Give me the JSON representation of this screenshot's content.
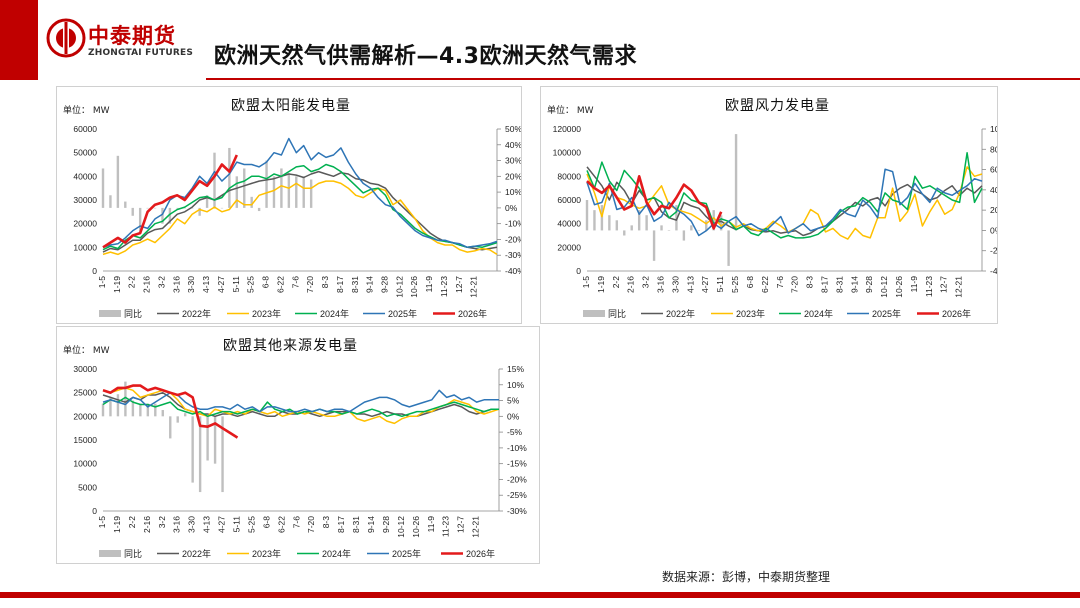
{
  "header": {
    "logo_cn": "中泰期货",
    "logo_en": "ZHONGTAI FUTURES",
    "title": "欧洲天然气供需解析—4.3欧洲天然气需求"
  },
  "footer": {
    "source": "数据来源：彭博，中泰期货整理"
  },
  "colors": {
    "accent": "#c00000",
    "yoy": "#bfbfbf",
    "y2022": "#595959",
    "y2023": "#ffc000",
    "y2024": "#00b050",
    "y2025": "#2e75b6",
    "y2026": "#e31a1c"
  },
  "chart_data": [
    {
      "type": "line",
      "title": "欧盟太阳能发电量",
      "unit": "单位： MW",
      "x_ticks": [
        "1-5",
        "1-19",
        "2-2",
        "2-16",
        "3-2",
        "3-16",
        "3-30",
        "4-13",
        "4-27",
        "5-11",
        "5-25",
        "6-8",
        "6-22",
        "7-6",
        "7-20",
        "8-3",
        "8-17",
        "8-31",
        "9-14",
        "9-28",
        "10-12",
        "10-26",
        "11-9",
        "11-23",
        "12-7",
        "12-21"
      ],
      "ylim": [
        0,
        60000
      ],
      "y_ticks": [
        "0",
        "10000",
        "20000",
        "30000",
        "40000",
        "50000",
        "60000"
      ],
      "y2lim": [
        -40,
        50
      ],
      "y2_ticks": [
        "-40%",
        "-30%",
        "-20%",
        "-10%",
        "0%",
        "10%",
        "20%",
        "30%",
        "40%",
        "50%"
      ],
      "legend": [
        "同比",
        "2022年",
        "2023年",
        "2024年",
        "2025年",
        "2026年"
      ],
      "yoy": [
        25,
        8,
        33,
        4,
        -5,
        -15,
        0,
        0,
        -10,
        -10,
        0,
        0,
        0,
        -5,
        8,
        35,
        0,
        38,
        20,
        25,
        7,
        -2,
        30,
        20,
        25,
        22,
        20,
        20,
        18
      ],
      "series": [
        {
          "name": "2022年",
          "values": [
            8000,
            9500,
            9000,
            11000,
            13000,
            13000,
            16000,
            17500,
            18000,
            21000,
            24000,
            25000,
            27000,
            30000,
            31000,
            30000,
            32000,
            34000,
            35000,
            36000,
            37000,
            38000,
            38500,
            39000,
            40000,
            41000,
            40500,
            39500,
            41000,
            42000,
            41000,
            40000,
            41500,
            41000,
            39000,
            38500,
            37000,
            36500,
            35000,
            31000,
            28000,
            25000,
            22000,
            19000,
            16000,
            14000,
            12500,
            12000,
            11000,
            10000,
            9500,
            9000,
            9500,
            10000
          ]
        },
        {
          "name": "2023年",
          "values": [
            7000,
            8000,
            7000,
            8500,
            11000,
            12000,
            13500,
            12000,
            15000,
            18000,
            22000,
            20000,
            24000,
            26000,
            25000,
            27000,
            25000,
            26000,
            30000,
            28000,
            28000,
            32000,
            33000,
            34000,
            36000,
            35000,
            37000,
            35000,
            35000,
            37000,
            38000,
            38000,
            37000,
            35000,
            32000,
            31000,
            33000,
            35000,
            34000,
            28000,
            30000,
            26000,
            22000,
            17000,
            14000,
            12000,
            11000,
            11000,
            9000,
            8000,
            8500,
            9500,
            9000,
            7000
          ]
        },
        {
          "name": "2024年",
          "values": [
            9000,
            10500,
            9500,
            13000,
            15000,
            14000,
            17000,
            20000,
            21000,
            24000,
            26000,
            27000,
            29000,
            31000,
            31500,
            30000,
            31000,
            35000,
            37000,
            38000,
            40000,
            40000,
            39000,
            41000,
            40000,
            42000,
            44000,
            44500,
            42000,
            43000,
            45000,
            44000,
            42000,
            39000,
            36000,
            33000,
            34500,
            35000,
            32000,
            26000,
            24000,
            21000,
            18000,
            16000,
            14500,
            13000,
            12500,
            12000,
            11000,
            10000,
            10500,
            10000,
            11000,
            12000
          ]
        },
        {
          "name": "2025年",
          "values": [
            10000,
            11000,
            11500,
            14000,
            17000,
            19000,
            18000,
            22000,
            24000,
            30000,
            32000,
            31000,
            35000,
            40000,
            37000,
            42000,
            38000,
            41000,
            46000,
            45000,
            45000,
            44000,
            46000,
            50000,
            49000,
            56000,
            50000,
            53000,
            47000,
            50000,
            48000,
            49000,
            52000,
            46000,
            41000,
            37000,
            35000,
            31000,
            28000,
            27000,
            23000,
            20000,
            17000,
            15000,
            14000,
            13000,
            13000,
            12000,
            11500,
            10000,
            10500,
            11000,
            11500,
            12500
          ]
        },
        {
          "name": "2026年",
          "values": [
            10000,
            12000,
            14000,
            12000,
            15000,
            16000,
            25000,
            28000,
            29000,
            31000,
            32000,
            30000,
            34000,
            38000,
            36000,
            40000,
            45000,
            42000,
            49000
          ]
        }
      ]
    },
    {
      "type": "line",
      "title": "欧盟风力发电量",
      "unit": "单位： MW",
      "x_ticks": [
        "1-5",
        "1-19",
        "2-2",
        "2-16",
        "3-2",
        "3-16",
        "3-30",
        "4-13",
        "4-27",
        "5-11",
        "5-25",
        "6-8",
        "6-22",
        "7-6",
        "7-20",
        "8-3",
        "8-17",
        "8-31",
        "9-14",
        "9-28",
        "10-12",
        "10-26",
        "11-9",
        "11-23",
        "12-7",
        "12-21"
      ],
      "ylim": [
        0,
        120000
      ],
      "y_ticks": [
        "0",
        "20000",
        "40000",
        "60000",
        "80000",
        "100000",
        "120000"
      ],
      "y2lim": [
        -40,
        100
      ],
      "y2_ticks": [
        "-40%",
        "-20%",
        "0%",
        "20%",
        "40%",
        "60%",
        "80%",
        "100%"
      ],
      "legend": [
        "同比",
        "2022年",
        "2023年",
        "2024年",
        "2025年",
        "2026年"
      ],
      "yoy": [
        30,
        20,
        25,
        15,
        10,
        -5,
        5,
        20,
        15,
        -30,
        5,
        0,
        25,
        -10,
        5,
        0,
        10,
        20,
        15,
        -35,
        95
      ],
      "series": [
        {
          "name": "2022年",
          "values": [
            88000,
            80000,
            72000,
            60000,
            75000,
            68000,
            57000,
            68000,
            60000,
            62000,
            50000,
            45000,
            43000,
            58000,
            55000,
            53000,
            46000,
            40000,
            42000,
            38000,
            35000,
            38000,
            35000,
            34000,
            33000,
            34000,
            32000,
            33000,
            34000,
            30000,
            32000,
            36000,
            38000,
            42000,
            47000,
            52000,
            58000,
            55000,
            60000,
            62000,
            55000,
            65000,
            70000,
            73000,
            68000,
            65000,
            60000,
            62000,
            68000,
            72000,
            64000,
            70000,
            66000,
            72000
          ]
        },
        {
          "name": "2023年",
          "values": [
            82000,
            66000,
            46000,
            72000,
            62000,
            60000,
            56000,
            53000,
            55000,
            64000,
            72000,
            56000,
            52000,
            50000,
            48000,
            44000,
            40000,
            45000,
            38000,
            42000,
            37000,
            40000,
            36000,
            34000,
            36000,
            42000,
            38000,
            33000,
            36000,
            40000,
            52000,
            48000,
            33000,
            36000,
            30000,
            27000,
            36000,
            30000,
            28000,
            45000,
            45000,
            70000,
            42000,
            50000,
            65000,
            38000,
            50000,
            60000,
            48000,
            52000,
            66000,
            88000,
            80000,
            82000
          ]
        },
        {
          "name": "2024年",
          "values": [
            85000,
            70000,
            92000,
            76000,
            68000,
            85000,
            78000,
            70000,
            60000,
            62000,
            58000,
            45000,
            50000,
            66000,
            60000,
            58000,
            57000,
            40000,
            44000,
            42000,
            35000,
            38000,
            32000,
            30000,
            36000,
            32000,
            28000,
            30000,
            28000,
            28000,
            29000,
            31000,
            36000,
            42000,
            50000,
            54000,
            55000,
            62000,
            58000,
            50000,
            66000,
            60000,
            58000,
            52000,
            80000,
            70000,
            72000,
            68000,
            64000,
            60000,
            58000,
            100000,
            58000,
            70000
          ]
        },
        {
          "name": "2025年",
          "values": [
            75000,
            56000,
            58000,
            74000,
            52000,
            54000,
            62000,
            48000,
            56000,
            42000,
            46000,
            58000,
            52000,
            48000,
            42000,
            30000,
            34000,
            40000,
            36000,
            42000,
            46000,
            38000,
            40000,
            36000,
            34000,
            40000,
            46000,
            32000,
            36000,
            40000,
            34000,
            36000,
            38000,
            44000,
            52000,
            48000,
            46000,
            60000,
            54000,
            45000,
            86000,
            84000,
            56000,
            62000,
            74000,
            65000,
            58000,
            70000,
            66000,
            64000,
            68000,
            72000,
            78000,
            76000
          ]
        },
        {
          "name": "2026年",
          "values": [
            76000,
            70000,
            66000,
            72000,
            62000,
            52000,
            55000,
            80000,
            58000,
            48000,
            55000,
            53000,
            62000,
            73000,
            68000,
            58000,
            54000,
            36000,
            50000
          ]
        }
      ]
    },
    {
      "type": "line",
      "title": "欧盟其他来源发电量",
      "unit": "单位： MW",
      "x_ticks": [
        "1-5",
        "1-19",
        "2-2",
        "2-16",
        "3-2",
        "3-16",
        "3-30",
        "4-13",
        "4-27",
        "5-11",
        "5-25",
        "6-8",
        "6-22",
        "7-6",
        "7-20",
        "8-3",
        "8-17",
        "8-31",
        "9-14",
        "9-28",
        "10-12",
        "10-26",
        "11-9",
        "11-23",
        "12-7",
        "12-21"
      ],
      "ylim": [
        0,
        30000
      ],
      "y_ticks": [
        "0",
        "5000",
        "10000",
        "15000",
        "20000",
        "25000",
        "30000"
      ],
      "y2lim": [
        -30,
        15
      ],
      "y2_ticks": [
        "-30%",
        "-25%",
        "-20%",
        "-15%",
        "-10%",
        "-5%",
        "0%",
        "5%",
        "10%",
        "15%"
      ],
      "legend": [
        "同比",
        "2022年",
        "2023年",
        "2024年",
        "2025年",
        "2026年"
      ],
      "yoy": [
        4,
        6,
        7,
        11,
        5,
        4,
        4,
        4,
        2,
        -7,
        -2,
        1,
        -21,
        -24,
        -14,
        -15,
        -24
      ],
      "series": [
        {
          "name": "2022年",
          "values": [
            24500,
            24000,
            23500,
            23000,
            24000,
            23500,
            24500,
            24500,
            25000,
            24000,
            22500,
            21500,
            21000,
            20500,
            20500,
            20000,
            20500,
            20500,
            20000,
            20500,
            21000,
            20500,
            20000,
            20000,
            21000,
            20500,
            20500,
            21000,
            20500,
            20000,
            20500,
            21000,
            21000,
            21000,
            20500,
            20500,
            20000,
            20500,
            21000,
            20500,
            20500,
            20000,
            20000,
            20500,
            21000,
            21500,
            22000,
            22500,
            22000,
            21000,
            20500,
            21000,
            21500,
            21500
          ]
        },
        {
          "name": "2023年",
          "values": [
            25500,
            25000,
            25500,
            26000,
            25500,
            24000,
            24500,
            25000,
            25500,
            25000,
            23500,
            21500,
            21000,
            20500,
            20000,
            21500,
            21000,
            20500,
            21000,
            20500,
            21500,
            21000,
            20500,
            21000,
            20000,
            20500,
            21000,
            20500,
            21000,
            20500,
            20000,
            20000,
            20500,
            21000,
            19500,
            19000,
            19500,
            20000,
            19000,
            18500,
            19500,
            20000,
            20000,
            21000,
            21000,
            22000,
            22500,
            23500,
            23000,
            22500,
            21000,
            20500,
            21000,
            21500
          ]
        },
        {
          "name": "2024年",
          "values": [
            22500,
            23500,
            23000,
            24000,
            23000,
            22500,
            22500,
            22000,
            22500,
            23000,
            21500,
            21000,
            20500,
            21000,
            20000,
            20500,
            21000,
            21000,
            20500,
            21000,
            21500,
            21000,
            23000,
            21500,
            21000,
            21500,
            20500,
            21000,
            21000,
            21500,
            21000,
            21000,
            20500,
            21000,
            20500,
            21000,
            21500,
            21000,
            20000,
            20500,
            20000,
            20500,
            21000,
            21000,
            21500,
            22000,
            22500,
            23000,
            22500,
            22000,
            21500,
            21000,
            21500,
            21500
          ]
        },
        {
          "name": "2025年",
          "values": [
            23000,
            23500,
            23000,
            22500,
            24000,
            23500,
            22000,
            23000,
            24000,
            25000,
            24500,
            23000,
            22000,
            21500,
            21500,
            22000,
            22000,
            21500,
            22500,
            21500,
            22000,
            21000,
            22000,
            22000,
            21500,
            21000,
            21000,
            21500,
            21000,
            21500,
            21000,
            21500,
            21500,
            21000,
            22000,
            23000,
            23500,
            24000,
            24000,
            23500,
            22500,
            22000,
            22500,
            23000,
            23500,
            25500,
            24000,
            24500,
            23500,
            24000,
            23000,
            23500,
            23500,
            23500
          ]
        },
        {
          "name": "2026年",
          "values": [
            25500,
            25000,
            26000,
            26000,
            26500,
            26500,
            25500,
            26000,
            25500,
            25000,
            24500,
            25000,
            24000,
            18000,
            17800,
            18500,
            17500,
            16500,
            15500
          ]
        }
      ]
    }
  ]
}
